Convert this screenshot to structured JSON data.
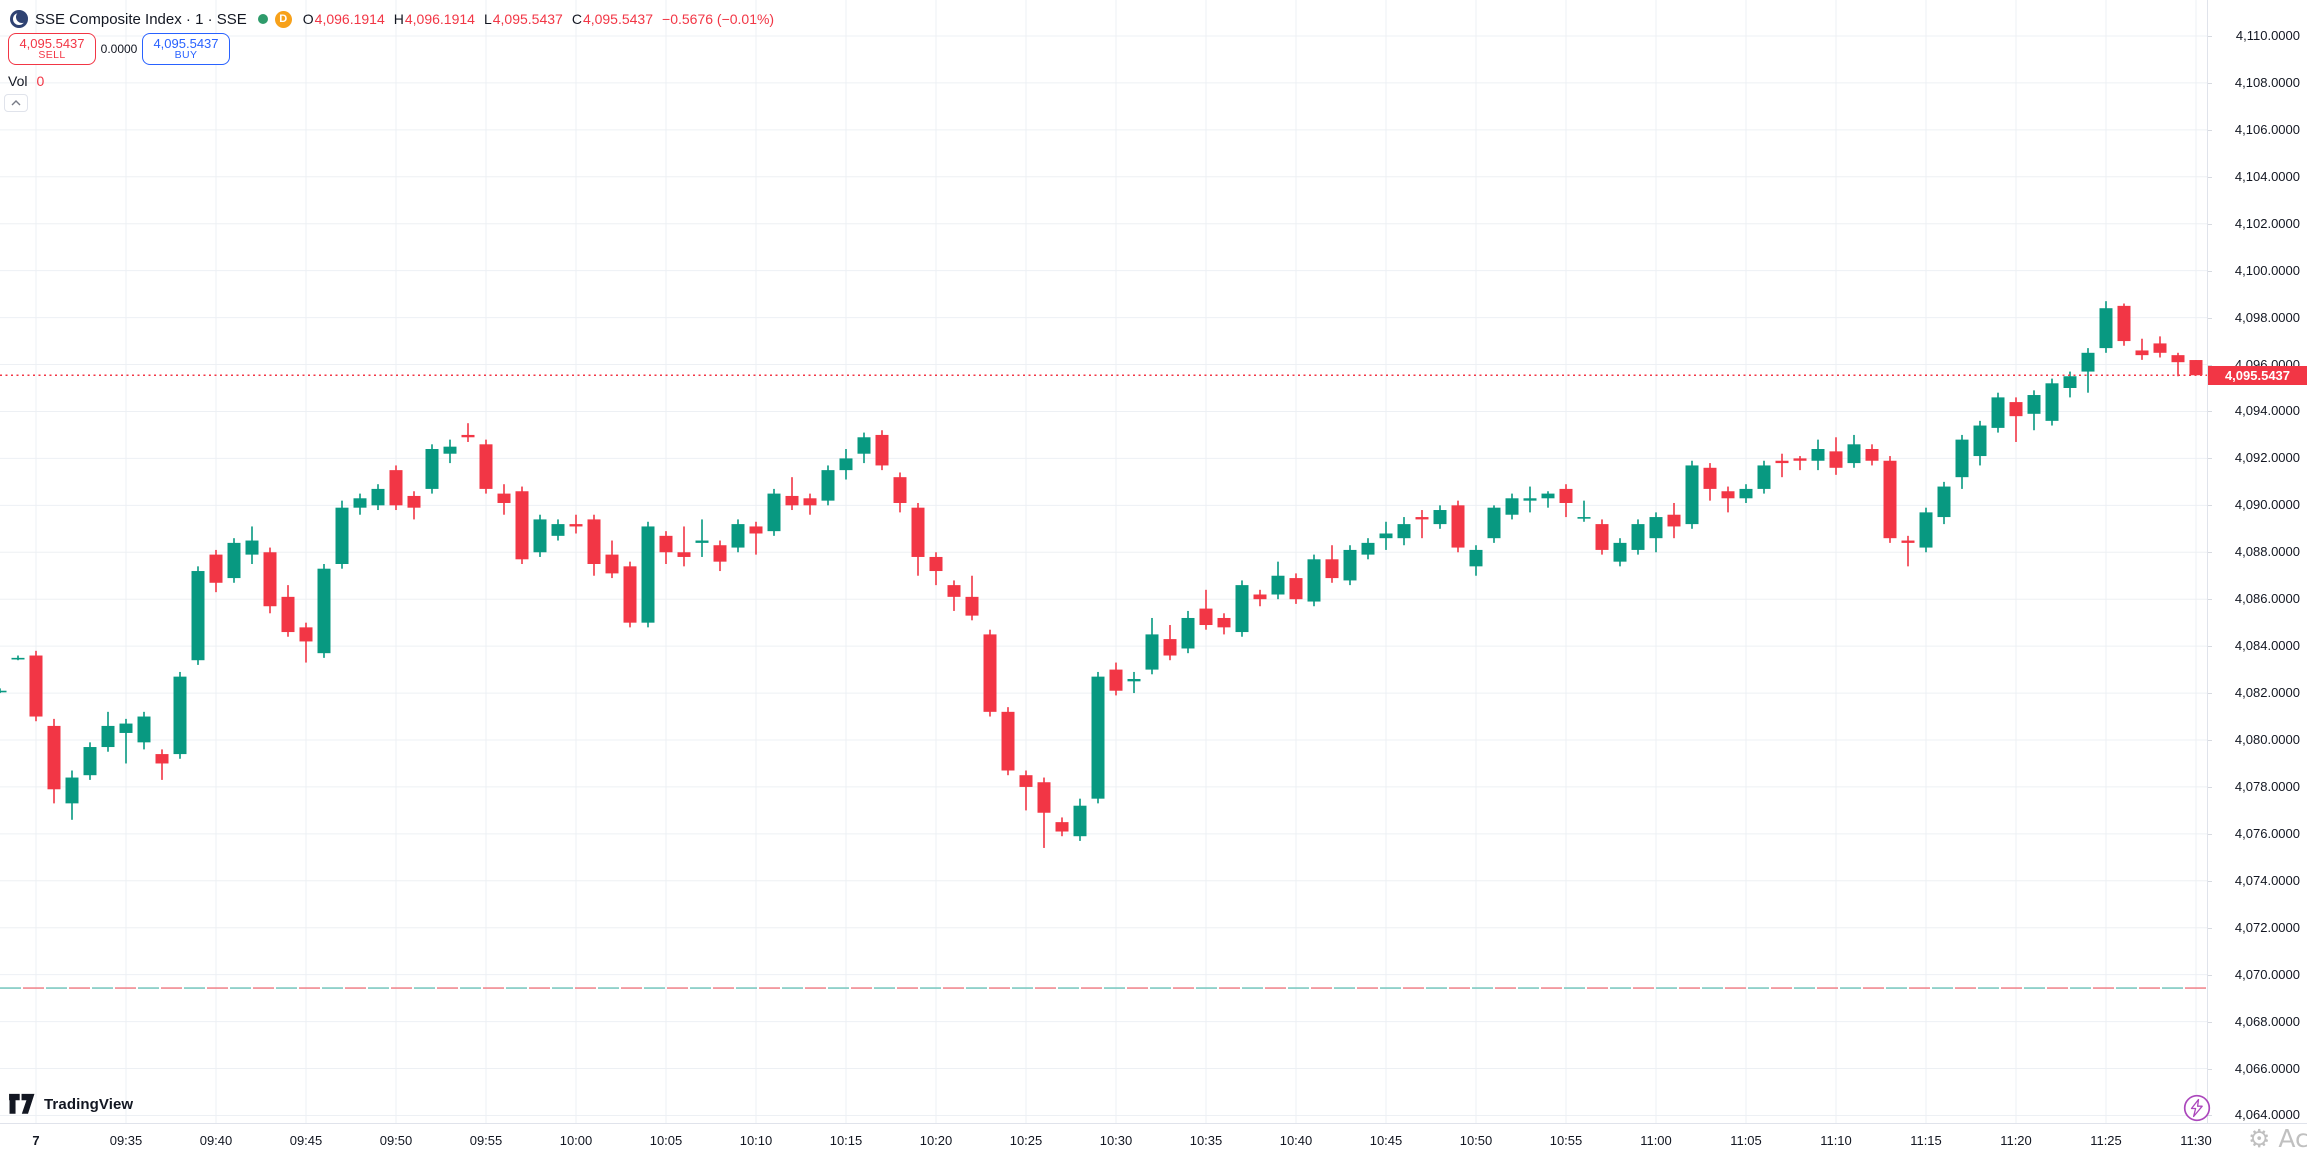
{
  "header": {
    "title": "SSE Composite Index · 1 · SSE",
    "logo_icon": "sse-exchange-logo",
    "status_icon": "market-status-green-dot",
    "delayed_badge": "D",
    "ohlc": {
      "o_label": "O",
      "o_value": "4,096.1914",
      "h_label": "H",
      "h_value": "4,096.1914",
      "l_label": "L",
      "l_value": "4,095.5437",
      "c_label": "C",
      "c_value": "4,095.5437",
      "change": "−0.5676 (−0.01%)"
    }
  },
  "orders": {
    "sell_price": "4,095.5437",
    "sell_label": "SELL",
    "spread": "0.0000",
    "buy_price": "4,095.5437",
    "buy_label": "BUY"
  },
  "volume": {
    "label": "Vol",
    "value": "0"
  },
  "brand": {
    "name": "TradingView"
  },
  "price_axis": {
    "labels": [
      "4,110.0000",
      "4,108.0000",
      "4,106.0000",
      "4,104.0000",
      "4,102.0000",
      "4,100.0000",
      "4,098.0000",
      "4,096.0000",
      "4,094.0000",
      "4,092.0000",
      "4,090.0000",
      "4,088.0000",
      "4,086.0000",
      "4,084.0000",
      "4,082.0000",
      "4,080.0000",
      "4,078.0000",
      "4,076.0000",
      "4,074.0000",
      "4,072.0000",
      "4,070.0000",
      "4,068.0000",
      "4,066.0000",
      "4,064.0000"
    ],
    "current_label": "4,095.5437"
  },
  "time_axis": {
    "labels": [
      "7",
      "09:35",
      "09:40",
      "09:45",
      "09:50",
      "09:55",
      "10:00",
      "10:05",
      "10:10",
      "10:15",
      "10:20",
      "10:25",
      "10:30",
      "10:35",
      "10:40",
      "10:45",
      "10:50",
      "10:55",
      "11:00",
      "11:05",
      "11:10",
      "11:15",
      "11:20",
      "11:25",
      "11:30"
    ]
  },
  "watermark": {
    "gear_icon": "gear-icon",
    "text": "Activ"
  },
  "chart_data": {
    "type": "candlestick",
    "title": "SSE Composite Index 1-minute",
    "up_color": "#089981",
    "down_color": "#F23645",
    "grid_color": "#EDF0F4",
    "current_price": 4095.5437,
    "current_price_color": "#F23645",
    "reference_line_price": 4069.43,
    "reference_line_colors": [
      "#F08A90",
      "#7FCAC2"
    ],
    "y_axis": {
      "min": 4064,
      "max": 4110,
      "step": 2
    },
    "x_axis": {
      "start": "09:28",
      "end": "11:30",
      "interval_minutes": 1
    },
    "legend_position": "top-left",
    "grid": true,
    "candles": [
      [
        "09:28",
        4082.1,
        4082.2,
        4082.0,
        4082.1
      ],
      [
        "09:29",
        4083.5,
        4083.6,
        4083.4,
        4083.5
      ],
      [
        "09:30",
        4083.6,
        4083.8,
        4080.8,
        4081.0
      ],
      [
        "09:31",
        4080.6,
        4080.9,
        4077.3,
        4077.9
      ],
      [
        "09:32",
        4077.3,
        4078.7,
        4076.6,
        4078.4
      ],
      [
        "09:33",
        4078.5,
        4079.9,
        4078.3,
        4079.7
      ],
      [
        "09:34",
        4079.7,
        4081.2,
        4079.5,
        4080.6
      ],
      [
        "09:35",
        4080.3,
        4080.9,
        4079.0,
        4080.7
      ],
      [
        "09:36",
        4079.9,
        4081.2,
        4079.6,
        4081.0
      ],
      [
        "09:37",
        4079.4,
        4079.6,
        4078.3,
        4079.0
      ],
      [
        "09:38",
        4079.4,
        4082.9,
        4079.2,
        4082.7
      ],
      [
        "09:39",
        4083.4,
        4087.4,
        4083.2,
        4087.2
      ],
      [
        "09:40",
        4087.9,
        4088.1,
        4086.3,
        4086.7
      ],
      [
        "09:41",
        4086.9,
        4088.6,
        4086.7,
        4088.4
      ],
      [
        "09:42",
        4087.9,
        4089.1,
        4087.5,
        4088.5
      ],
      [
        "09:43",
        4088.0,
        4088.2,
        4085.4,
        4085.7
      ],
      [
        "09:44",
        4086.1,
        4086.6,
        4084.4,
        4084.6
      ],
      [
        "09:45",
        4084.8,
        4085.0,
        4083.3,
        4084.2
      ],
      [
        "09:46",
        4083.7,
        4087.5,
        4083.5,
        4087.3
      ],
      [
        "09:47",
        4087.5,
        4090.2,
        4087.3,
        4089.9
      ],
      [
        "09:48",
        4089.9,
        4090.5,
        4089.6,
        4090.3
      ],
      [
        "09:49",
        4090.0,
        4090.9,
        4089.8,
        4090.7
      ],
      [
        "09:50",
        4091.5,
        4091.7,
        4089.8,
        4090.0
      ],
      [
        "09:51",
        4090.4,
        4090.6,
        4089.4,
        4089.9
      ],
      [
        "09:52",
        4090.7,
        4092.6,
        4090.5,
        4092.4
      ],
      [
        "09:53",
        4092.2,
        4092.8,
        4091.8,
        4092.5
      ],
      [
        "09:54",
        4093.0,
        4093.5,
        4092.7,
        4092.9
      ],
      [
        "09:55",
        4092.6,
        4092.8,
        4090.5,
        4090.7
      ],
      [
        "09:56",
        4090.5,
        4090.9,
        4089.6,
        4090.1
      ],
      [
        "09:57",
        4090.6,
        4090.8,
        4087.5,
        4087.7
      ],
      [
        "09:58",
        4088.0,
        4089.6,
        4087.8,
        4089.4
      ],
      [
        "09:59",
        4088.7,
        4089.4,
        4088.5,
        4089.2
      ],
      [
        "10:00",
        4089.2,
        4089.6,
        4088.8,
        4089.1
      ],
      [
        "10:01",
        4089.4,
        4089.6,
        4087.0,
        4087.5
      ],
      [
        "10:02",
        4087.9,
        4088.5,
        4086.9,
        4087.1
      ],
      [
        "10:03",
        4087.4,
        4087.6,
        4084.8,
        4085.0
      ],
      [
        "10:04",
        4085.0,
        4089.3,
        4084.8,
        4089.1
      ],
      [
        "10:05",
        4088.7,
        4088.9,
        4087.5,
        4088.0
      ],
      [
        "10:06",
        4088.0,
        4089.1,
        4087.4,
        4087.8
      ],
      [
        "10:07",
        4088.4,
        4089.4,
        4087.8,
        4088.5
      ],
      [
        "10:08",
        4088.3,
        4088.5,
        4087.2,
        4087.6
      ],
      [
        "10:09",
        4088.2,
        4089.4,
        4088.0,
        4089.2
      ],
      [
        "10:10",
        4089.1,
        4089.3,
        4087.9,
        4088.8
      ],
      [
        "10:11",
        4088.9,
        4090.7,
        4088.7,
        4090.5
      ],
      [
        "10:12",
        4090.4,
        4091.2,
        4089.8,
        4090.0
      ],
      [
        "10:13",
        4090.3,
        4090.5,
        4089.6,
        4090.0
      ],
      [
        "10:14",
        4090.2,
        4091.7,
        4090.0,
        4091.5
      ],
      [
        "10:15",
        4091.5,
        4092.4,
        4091.1,
        4092.0
      ],
      [
        "10:16",
        4092.2,
        4093.1,
        4091.8,
        4092.9
      ],
      [
        "10:17",
        4093.0,
        4093.2,
        4091.5,
        4091.7
      ],
      [
        "10:18",
        4091.2,
        4091.4,
        4089.7,
        4090.1
      ],
      [
        "10:19",
        4089.9,
        4090.1,
        4087.0,
        4087.8
      ],
      [
        "10:20",
        4087.8,
        4088.0,
        4086.6,
        4087.2
      ],
      [
        "10:21",
        4086.6,
        4086.8,
        4085.5,
        4086.1
      ],
      [
        "10:22",
        4086.1,
        4087.0,
        4085.1,
        4085.3
      ],
      [
        "10:23",
        4084.5,
        4084.7,
        4081.0,
        4081.2
      ],
      [
        "10:24",
        4081.2,
        4081.4,
        4078.5,
        4078.7
      ],
      [
        "10:25",
        4078.5,
        4078.7,
        4077.0,
        4078.0
      ],
      [
        "10:26",
        4078.2,
        4078.4,
        4075.4,
        4076.9
      ],
      [
        "10:27",
        4076.5,
        4076.7,
        4075.9,
        4076.1
      ],
      [
        "10:28",
        4075.9,
        4077.5,
        4075.7,
        4077.2
      ],
      [
        "10:29",
        4077.5,
        4082.9,
        4077.3,
        4082.7
      ],
      [
        "10:30",
        4083.0,
        4083.3,
        4081.9,
        4082.1
      ],
      [
        "10:31",
        4082.5,
        4082.9,
        4082.0,
        4082.6
      ],
      [
        "10:32",
        4083.0,
        4085.2,
        4082.8,
        4084.5
      ],
      [
        "10:33",
        4084.3,
        4084.9,
        4083.4,
        4083.6
      ],
      [
        "10:34",
        4083.9,
        4085.5,
        4083.7,
        4085.2
      ],
      [
        "10:35",
        4085.6,
        4086.4,
        4084.7,
        4084.9
      ],
      [
        "10:36",
        4085.2,
        4085.4,
        4084.5,
        4084.8
      ],
      [
        "10:37",
        4084.6,
        4086.8,
        4084.4,
        4086.6
      ],
      [
        "10:38",
        4086.2,
        4086.4,
        4085.7,
        4086.0
      ],
      [
        "10:39",
        4086.2,
        4087.6,
        4086.0,
        4087.0
      ],
      [
        "10:40",
        4086.9,
        4087.1,
        4085.8,
        4086.0
      ],
      [
        "10:41",
        4085.9,
        4087.9,
        4085.7,
        4087.7
      ],
      [
        "10:42",
        4087.7,
        4088.3,
        4086.7,
        4086.9
      ],
      [
        "10:43",
        4086.8,
        4088.3,
        4086.6,
        4088.1
      ],
      [
        "10:44",
        4087.9,
        4088.6,
        4087.7,
        4088.4
      ],
      [
        "10:45",
        4088.6,
        4089.3,
        4088.1,
        4088.8
      ],
      [
        "10:46",
        4088.6,
        4089.5,
        4088.3,
        4089.2
      ],
      [
        "10:47",
        4089.5,
        4089.8,
        4088.6,
        4089.4
      ],
      [
        "10:48",
        4089.2,
        4090.0,
        4089.0,
        4089.8
      ],
      [
        "10:49",
        4090.0,
        4090.2,
        4088.0,
        4088.2
      ],
      [
        "10:50",
        4087.4,
        4088.3,
        4087.0,
        4088.1
      ],
      [
        "10:51",
        4088.6,
        4090.0,
        4088.4,
        4089.9
      ],
      [
        "10:52",
        4089.6,
        4090.5,
        4089.4,
        4090.3
      ],
      [
        "10:53",
        4090.2,
        4090.8,
        4089.7,
        4090.3
      ],
      [
        "10:54",
        4090.3,
        4090.6,
        4089.9,
        4090.5
      ],
      [
        "10:55",
        4090.7,
        4090.9,
        4089.5,
        4090.1
      ],
      [
        "10:56",
        4089.5,
        4090.2,
        4089.3,
        4089.5
      ],
      [
        "10:57",
        4089.2,
        4089.4,
        4087.9,
        4088.1
      ],
      [
        "10:58",
        4087.6,
        4088.6,
        4087.4,
        4088.4
      ],
      [
        "10:59",
        4088.1,
        4089.4,
        4087.9,
        4089.2
      ],
      [
        "11:00",
        4088.6,
        4089.7,
        4088.0,
        4089.5
      ],
      [
        "11:01",
        4089.6,
        4090.1,
        4088.6,
        4089.1
      ],
      [
        "11:02",
        4089.2,
        4091.9,
        4089.0,
        4091.7
      ],
      [
        "11:03",
        4091.6,
        4091.8,
        4090.2,
        4090.7
      ],
      [
        "11:04",
        4090.6,
        4090.8,
        4089.7,
        4090.3
      ],
      [
        "11:05",
        4090.3,
        4090.9,
        4090.1,
        4090.7
      ],
      [
        "11:06",
        4090.7,
        4091.9,
        4090.5,
        4091.7
      ],
      [
        "11:07",
        4091.9,
        4092.2,
        4091.2,
        4091.8
      ],
      [
        "11:08",
        4092.0,
        4092.1,
        4091.5,
        4091.9
      ],
      [
        "11:09",
        4091.9,
        4092.8,
        4091.5,
        4092.4
      ],
      [
        "11:10",
        4092.3,
        4092.9,
        4091.3,
        4091.6
      ],
      [
        "11:11",
        4091.8,
        4093.0,
        4091.6,
        4092.6
      ],
      [
        "11:12",
        4092.4,
        4092.6,
        4091.7,
        4091.9
      ],
      [
        "11:13",
        4091.9,
        4092.1,
        4088.4,
        4088.6
      ],
      [
        "11:14",
        4088.5,
        4088.7,
        4087.4,
        4088.4
      ],
      [
        "11:15",
        4088.2,
        4089.9,
        4088.0,
        4089.7
      ],
      [
        "11:16",
        4089.5,
        4091.0,
        4089.2,
        4090.8
      ],
      [
        "11:17",
        4091.2,
        4093.0,
        4090.7,
        4092.8
      ],
      [
        "11:18",
        4092.1,
        4093.6,
        4091.7,
        4093.4
      ],
      [
        "11:19",
        4093.3,
        4094.8,
        4093.1,
        4094.6
      ],
      [
        "11:20",
        4094.4,
        4094.6,
        4092.7,
        4093.8
      ],
      [
        "11:21",
        4093.9,
        4094.9,
        4093.2,
        4094.7
      ],
      [
        "11:22",
        4093.6,
        4095.4,
        4093.4,
        4095.2
      ],
      [
        "11:23",
        4095.0,
        4095.7,
        4094.6,
        4095.5
      ],
      [
        "11:24",
        4095.7,
        4096.7,
        4094.8,
        4096.5
      ],
      [
        "11:25",
        4096.7,
        4098.7,
        4096.5,
        4098.4
      ],
      [
        "11:26",
        4098.5,
        4098.6,
        4096.8,
        4097.0
      ],
      [
        "11:27",
        4096.6,
        4097.1,
        4096.2,
        4096.4
      ],
      [
        "11:28",
        4096.9,
        4097.2,
        4096.3,
        4096.5
      ],
      [
        "11:29",
        4096.4,
        4096.5,
        4095.5,
        4096.1
      ],
      [
        "11:30",
        4096.1914,
        4096.1914,
        4095.5437,
        4095.5437
      ]
    ]
  }
}
